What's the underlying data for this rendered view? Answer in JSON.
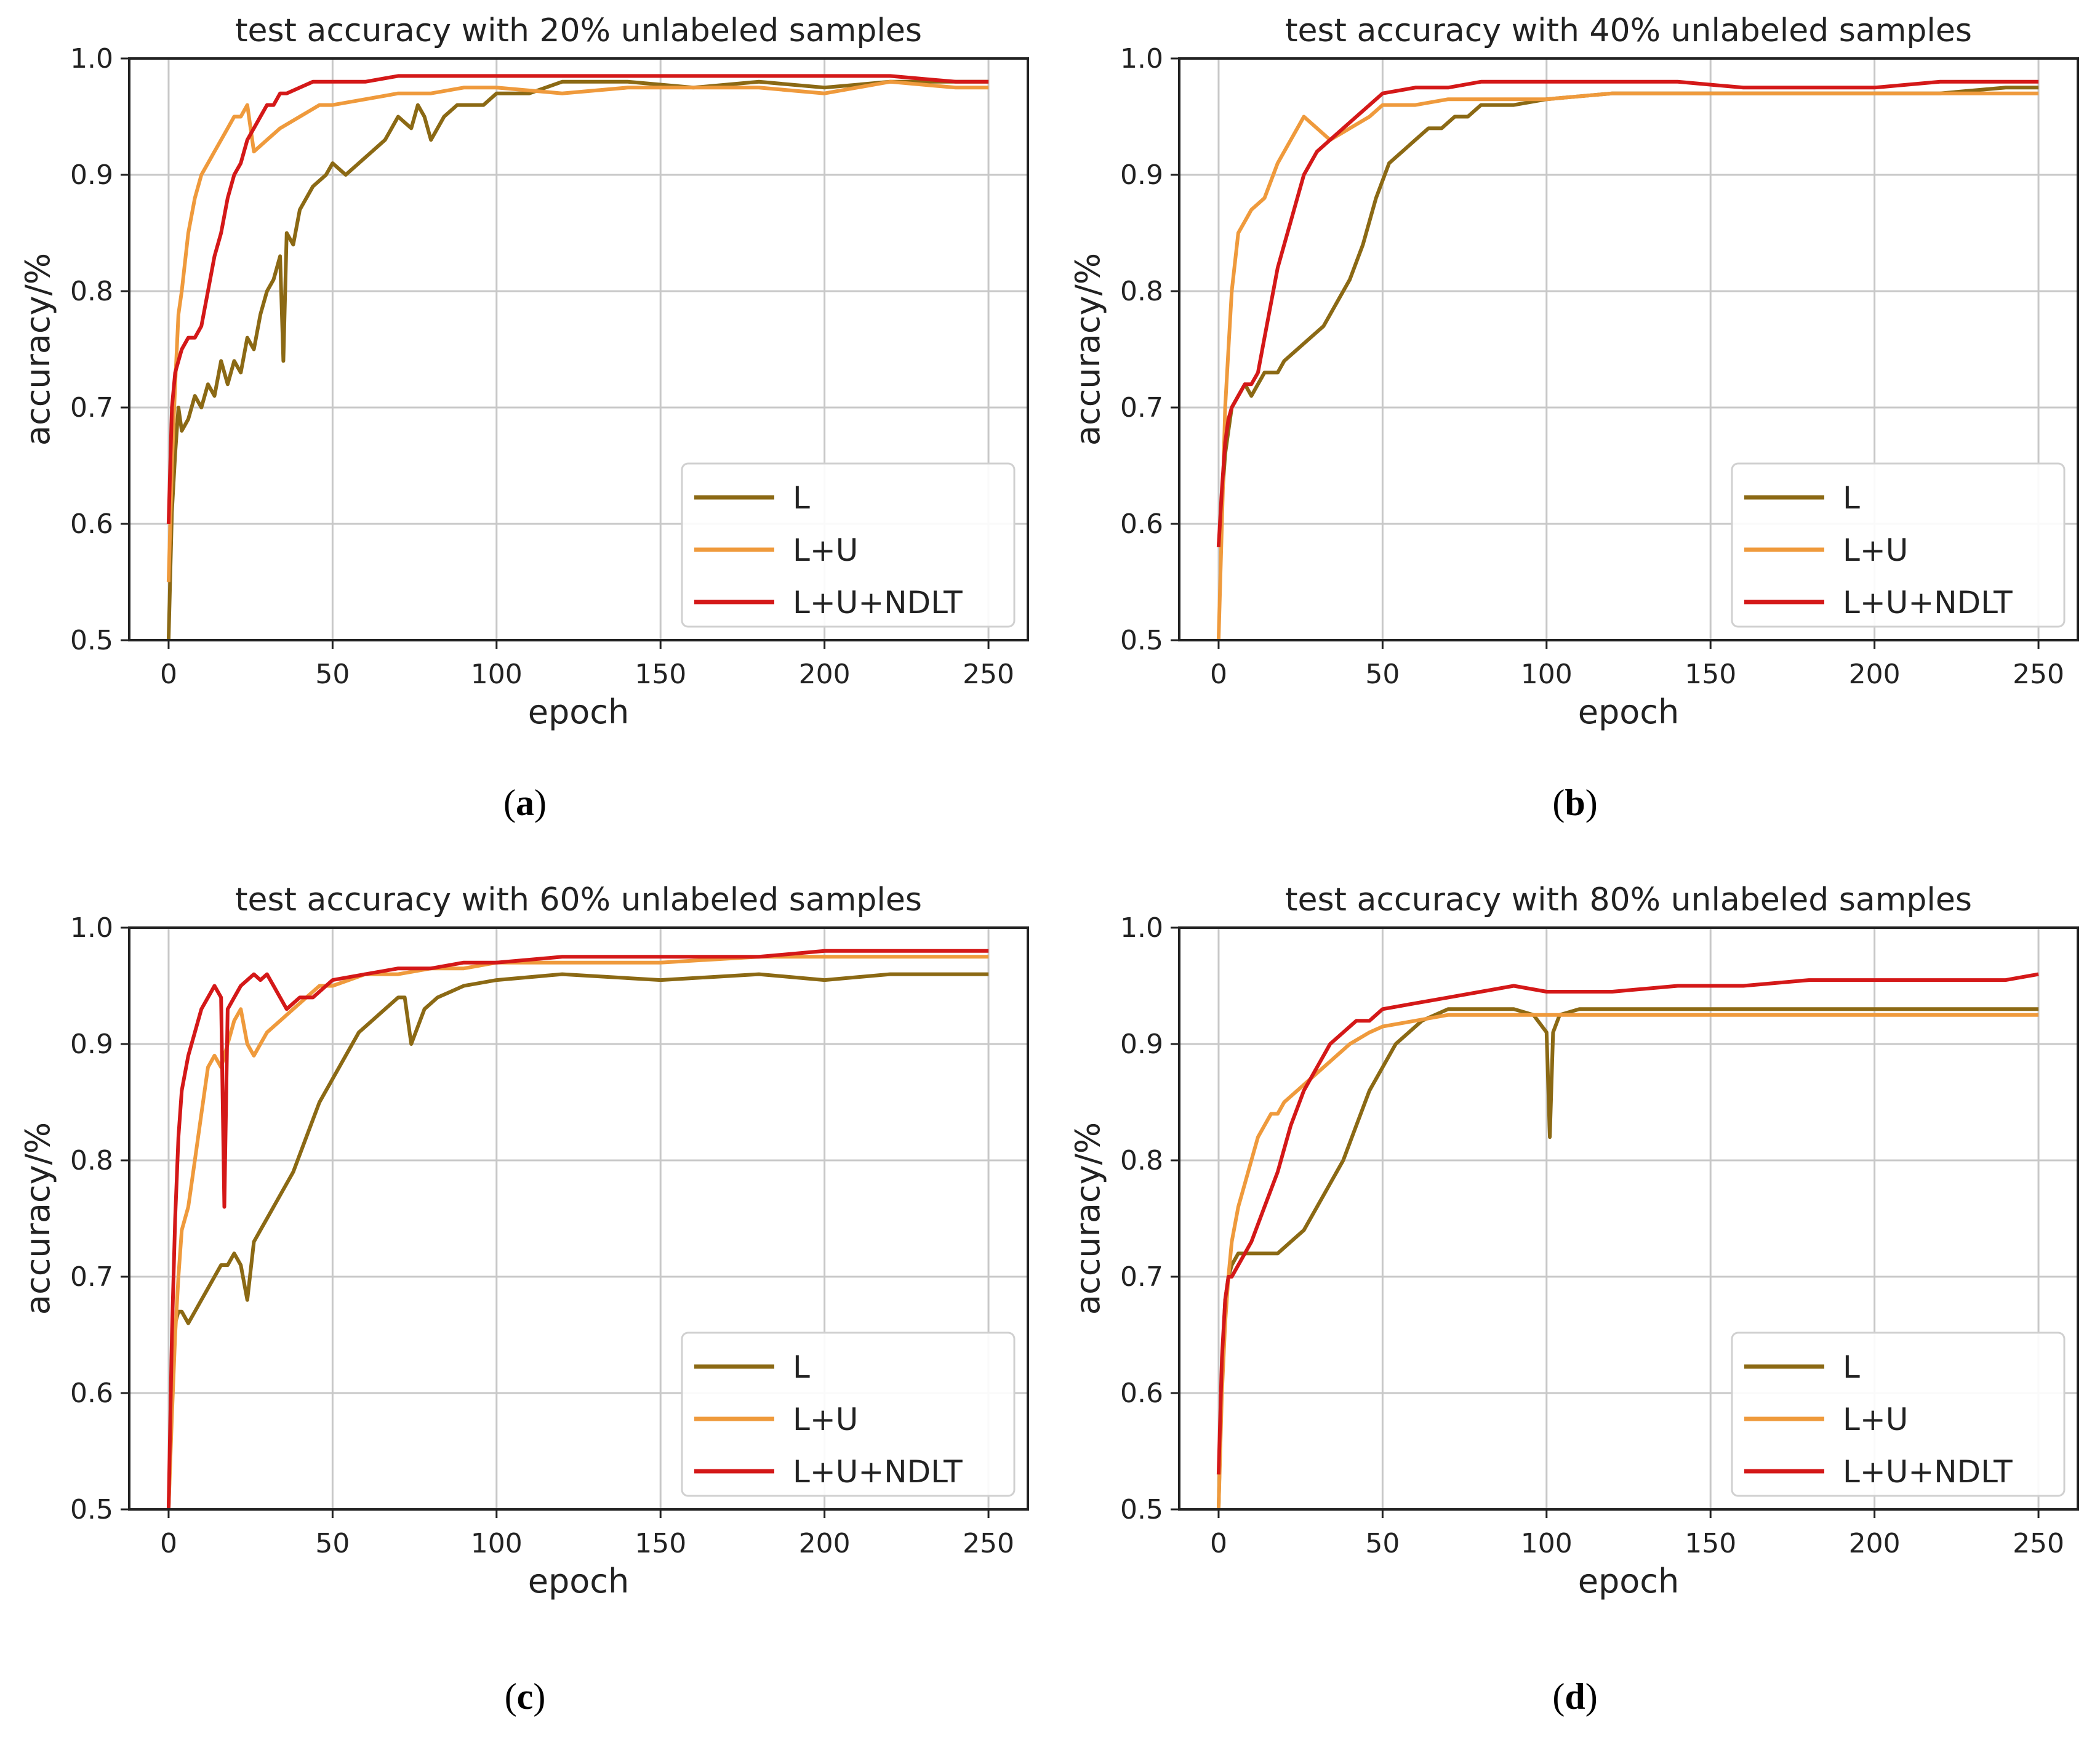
{
  "chart_data": [
    {
      "panel": "a",
      "type": "line",
      "title": "test accuracy with 20% unlabeled samples",
      "xlabel": "epoch",
      "ylabel": "accuracy/%",
      "xlim": [
        0,
        250
      ],
      "ylim": [
        0.5,
        1.0
      ],
      "xticks": [
        0,
        50,
        100,
        150,
        200,
        250
      ],
      "yticks": [
        0.5,
        0.6,
        0.7,
        0.8,
        0.9,
        1.0
      ],
      "grid": true,
      "legend_position": "lower-right",
      "series": [
        {
          "name": "L",
          "color": "#8b6914",
          "x": [
            0,
            1,
            2,
            3,
            4,
            6,
            8,
            10,
            12,
            14,
            16,
            18,
            20,
            22,
            24,
            26,
            28,
            30,
            32,
            34,
            35,
            36,
            38,
            40,
            44,
            48,
            50,
            54,
            58,
            62,
            66,
            70,
            74,
            76,
            78,
            80,
            84,
            88,
            92,
            96,
            100,
            110,
            120,
            140,
            160,
            180,
            200,
            220,
            240,
            250
          ],
          "y": [
            0.5,
            0.61,
            0.66,
            0.7,
            0.68,
            0.69,
            0.71,
            0.7,
            0.72,
            0.71,
            0.74,
            0.72,
            0.74,
            0.73,
            0.76,
            0.75,
            0.78,
            0.8,
            0.81,
            0.83,
            0.74,
            0.85,
            0.84,
            0.87,
            0.89,
            0.9,
            0.91,
            0.9,
            0.91,
            0.92,
            0.93,
            0.95,
            0.94,
            0.96,
            0.95,
            0.93,
            0.95,
            0.96,
            0.96,
            0.96,
            0.97,
            0.97,
            0.98,
            0.98,
            0.975,
            0.98,
            0.975,
            0.98,
            0.98,
            0.98
          ]
        },
        {
          "name": "L+U",
          "color": "#ef9a3c",
          "x": [
            0,
            1,
            2,
            3,
            4,
            6,
            8,
            10,
            12,
            14,
            16,
            18,
            20,
            22,
            24,
            26,
            30,
            34,
            40,
            46,
            50,
            60,
            70,
            80,
            90,
            100,
            120,
            140,
            160,
            180,
            200,
            220,
            240,
            250
          ],
          "y": [
            0.55,
            0.65,
            0.72,
            0.78,
            0.8,
            0.85,
            0.88,
            0.9,
            0.91,
            0.92,
            0.93,
            0.94,
            0.95,
            0.95,
            0.96,
            0.92,
            0.93,
            0.94,
            0.95,
            0.96,
            0.96,
            0.965,
            0.97,
            0.97,
            0.975,
            0.975,
            0.97,
            0.975,
            0.975,
            0.975,
            0.97,
            0.98,
            0.975,
            0.975
          ]
        },
        {
          "name": "L+U+NDLT",
          "color": "#d41818",
          "x": [
            0,
            1,
            2,
            3,
            4,
            6,
            8,
            10,
            12,
            14,
            16,
            18,
            20,
            22,
            24,
            26,
            28,
            30,
            32,
            34,
            36,
            40,
            44,
            48,
            50,
            60,
            70,
            80,
            90,
            100,
            110,
            120,
            140,
            160,
            180,
            200,
            220,
            240,
            250
          ],
          "y": [
            0.6,
            0.7,
            0.73,
            0.74,
            0.75,
            0.76,
            0.76,
            0.77,
            0.8,
            0.83,
            0.85,
            0.88,
            0.9,
            0.91,
            0.93,
            0.94,
            0.95,
            0.96,
            0.96,
            0.97,
            0.97,
            0.975,
            0.98,
            0.98,
            0.98,
            0.98,
            0.985,
            0.985,
            0.985,
            0.985,
            0.985,
            0.985,
            0.985,
            0.985,
            0.985,
            0.985,
            0.985,
            0.98,
            0.98
          ]
        }
      ]
    },
    {
      "panel": "b",
      "type": "line",
      "title": "test accuracy with 40% unlabeled samples",
      "xlabel": "epoch",
      "ylabel": "accuracy/%",
      "xlim": [
        0,
        250
      ],
      "ylim": [
        0.5,
        1.0
      ],
      "xticks": [
        0,
        50,
        100,
        150,
        200,
        250
      ],
      "yticks": [
        0.5,
        0.6,
        0.7,
        0.8,
        0.9,
        1.0
      ],
      "grid": true,
      "legend_position": "lower-right",
      "series": [
        {
          "name": "L",
          "color": "#8b6914",
          "x": [
            0,
            1,
            2,
            3,
            4,
            6,
            8,
            10,
            14,
            18,
            20,
            24,
            28,
            32,
            36,
            40,
            44,
            48,
            52,
            56,
            60,
            64,
            68,
            72,
            76,
            80,
            90,
            100,
            120,
            150,
            180,
            200,
            220,
            240,
            250
          ],
          "y": [
            0.58,
            0.62,
            0.66,
            0.68,
            0.7,
            0.71,
            0.72,
            0.71,
            0.73,
            0.73,
            0.74,
            0.75,
            0.76,
            0.77,
            0.79,
            0.81,
            0.84,
            0.88,
            0.91,
            0.92,
            0.93,
            0.94,
            0.94,
            0.95,
            0.95,
            0.96,
            0.96,
            0.965,
            0.97,
            0.97,
            0.97,
            0.97,
            0.97,
            0.975,
            0.975
          ]
        },
        {
          "name": "L+U",
          "color": "#ef9a3c",
          "x": [
            0,
            1,
            2,
            3,
            4,
            6,
            8,
            10,
            14,
            18,
            22,
            26,
            30,
            34,
            40,
            46,
            50,
            60,
            70,
            80,
            90,
            100,
            120,
            140,
            160,
            180,
            200,
            220,
            240,
            250
          ],
          "y": [
            0.5,
            0.6,
            0.7,
            0.75,
            0.8,
            0.85,
            0.86,
            0.87,
            0.88,
            0.91,
            0.93,
            0.95,
            0.94,
            0.93,
            0.94,
            0.95,
            0.96,
            0.96,
            0.965,
            0.965,
            0.965,
            0.965,
            0.97,
            0.97,
            0.97,
            0.97,
            0.97,
            0.97,
            0.97,
            0.97
          ]
        },
        {
          "name": "L+U+NDLT",
          "color": "#d41818",
          "x": [
            0,
            1,
            2,
            3,
            4,
            6,
            8,
            10,
            12,
            14,
            16,
            18,
            20,
            22,
            24,
            26,
            30,
            34,
            38,
            42,
            46,
            50,
            60,
            70,
            80,
            90,
            100,
            120,
            140,
            160,
            180,
            200,
            220,
            240,
            250
          ],
          "y": [
            0.58,
            0.63,
            0.67,
            0.69,
            0.7,
            0.71,
            0.72,
            0.72,
            0.73,
            0.76,
            0.79,
            0.82,
            0.84,
            0.86,
            0.88,
            0.9,
            0.92,
            0.93,
            0.94,
            0.95,
            0.96,
            0.97,
            0.975,
            0.975,
            0.98,
            0.98,
            0.98,
            0.98,
            0.98,
            0.975,
            0.975,
            0.975,
            0.98,
            0.98,
            0.98
          ]
        }
      ]
    },
    {
      "panel": "c",
      "type": "line",
      "title": "test accuracy with 60% unlabeled samples",
      "xlabel": "epoch",
      "ylabel": "accuracy/%",
      "xlim": [
        0,
        250
      ],
      "ylim": [
        0.5,
        1.0
      ],
      "xticks": [
        0,
        50,
        100,
        150,
        200,
        250
      ],
      "yticks": [
        0.5,
        0.6,
        0.7,
        0.8,
        0.9,
        1.0
      ],
      "grid": true,
      "legend_position": "lower-right",
      "series": [
        {
          "name": "L",
          "color": "#8b6914",
          "x": [
            0,
            1,
            2,
            3,
            4,
            6,
            8,
            10,
            12,
            14,
            16,
            18,
            20,
            22,
            24,
            26,
            28,
            30,
            34,
            38,
            42,
            46,
            50,
            54,
            58,
            62,
            66,
            70,
            72,
            74,
            78,
            82,
            86,
            90,
            100,
            120,
            150,
            180,
            200,
            220,
            240,
            250
          ],
          "y": [
            0.5,
            0.6,
            0.66,
            0.67,
            0.67,
            0.66,
            0.67,
            0.68,
            0.69,
            0.7,
            0.71,
            0.71,
            0.72,
            0.71,
            0.68,
            0.73,
            0.74,
            0.75,
            0.77,
            0.79,
            0.82,
            0.85,
            0.87,
            0.89,
            0.91,
            0.92,
            0.93,
            0.94,
            0.94,
            0.9,
            0.93,
            0.94,
            0.945,
            0.95,
            0.955,
            0.96,
            0.955,
            0.96,
            0.955,
            0.96,
            0.96,
            0.96
          ]
        },
        {
          "name": "L+U",
          "color": "#ef9a3c",
          "x": [
            0,
            1,
            2,
            3,
            4,
            6,
            8,
            10,
            12,
            14,
            16,
            18,
            20,
            22,
            24,
            26,
            28,
            30,
            34,
            38,
            42,
            46,
            50,
            60,
            70,
            80,
            90,
            100,
            120,
            150,
            180,
            200,
            220,
            240,
            250
          ],
          "y": [
            0.5,
            0.58,
            0.65,
            0.7,
            0.74,
            0.76,
            0.8,
            0.84,
            0.88,
            0.89,
            0.88,
            0.9,
            0.92,
            0.93,
            0.9,
            0.89,
            0.9,
            0.91,
            0.92,
            0.93,
            0.94,
            0.95,
            0.95,
            0.96,
            0.96,
            0.965,
            0.965,
            0.97,
            0.97,
            0.97,
            0.975,
            0.975,
            0.975,
            0.975,
            0.975
          ]
        },
        {
          "name": "L+U+NDLT",
          "color": "#d41818",
          "x": [
            0,
            1,
            2,
            3,
            4,
            6,
            8,
            10,
            12,
            14,
            16,
            17,
            18,
            20,
            22,
            24,
            26,
            28,
            30,
            32,
            36,
            40,
            44,
            48,
            50,
            60,
            70,
            80,
            90,
            100,
            120,
            150,
            180,
            200,
            220,
            240,
            250
          ],
          "y": [
            0.5,
            0.65,
            0.75,
            0.82,
            0.86,
            0.89,
            0.91,
            0.93,
            0.94,
            0.95,
            0.94,
            0.76,
            0.93,
            0.94,
            0.95,
            0.955,
            0.96,
            0.955,
            0.96,
            0.95,
            0.93,
            0.94,
            0.94,
            0.95,
            0.955,
            0.96,
            0.965,
            0.965,
            0.97,
            0.97,
            0.975,
            0.975,
            0.975,
            0.98,
            0.98,
            0.98,
            0.98
          ]
        }
      ]
    },
    {
      "panel": "d",
      "type": "line",
      "title": "test accuracy with 80% unlabeled samples",
      "xlabel": "epoch",
      "ylabel": "accuracy/%",
      "xlim": [
        0,
        250
      ],
      "ylim": [
        0.5,
        1.0
      ],
      "xticks": [
        0,
        50,
        100,
        150,
        200,
        250
      ],
      "yticks": [
        0.5,
        0.6,
        0.7,
        0.8,
        0.9,
        1.0
      ],
      "grid": true,
      "legend_position": "lower-right",
      "series": [
        {
          "name": "L",
          "color": "#8b6914",
          "x": [
            0,
            1,
            2,
            3,
            4,
            6,
            8,
            10,
            14,
            18,
            22,
            26,
            30,
            34,
            38,
            42,
            46,
            50,
            54,
            58,
            62,
            66,
            70,
            80,
            90,
            96,
            100,
            101,
            102,
            104,
            110,
            120,
            140,
            160,
            180,
            200,
            220,
            240,
            250
          ],
          "y": [
            0.5,
            0.62,
            0.68,
            0.7,
            0.71,
            0.72,
            0.72,
            0.72,
            0.72,
            0.72,
            0.73,
            0.74,
            0.76,
            0.78,
            0.8,
            0.83,
            0.86,
            0.88,
            0.9,
            0.91,
            0.92,
            0.925,
            0.93,
            0.93,
            0.93,
            0.925,
            0.91,
            0.82,
            0.91,
            0.925,
            0.93,
            0.93,
            0.93,
            0.93,
            0.93,
            0.93,
            0.93,
            0.93,
            0.93
          ]
        },
        {
          "name": "L+U",
          "color": "#ef9a3c",
          "x": [
            0,
            1,
            2,
            3,
            4,
            6,
            8,
            10,
            12,
            14,
            16,
            18,
            20,
            24,
            28,
            32,
            36,
            40,
            46,
            50,
            60,
            70,
            80,
            90,
            100,
            120,
            140,
            160,
            180,
            200,
            220,
            240,
            250
          ],
          "y": [
            0.5,
            0.6,
            0.66,
            0.7,
            0.73,
            0.76,
            0.78,
            0.8,
            0.82,
            0.83,
            0.84,
            0.84,
            0.85,
            0.86,
            0.87,
            0.88,
            0.89,
            0.9,
            0.91,
            0.915,
            0.92,
            0.925,
            0.925,
            0.925,
            0.925,
            0.925,
            0.925,
            0.925,
            0.925,
            0.925,
            0.925,
            0.925,
            0.925
          ]
        },
        {
          "name": "L+U+NDLT",
          "color": "#d41818",
          "x": [
            0,
            1,
            2,
            3,
            4,
            6,
            8,
            10,
            14,
            18,
            22,
            26,
            30,
            34,
            38,
            42,
            46,
            50,
            60,
            70,
            80,
            90,
            100,
            120,
            140,
            150,
            160,
            180,
            200,
            220,
            240,
            250
          ],
          "y": [
            0.53,
            0.63,
            0.68,
            0.7,
            0.7,
            0.71,
            0.72,
            0.73,
            0.76,
            0.79,
            0.83,
            0.86,
            0.88,
            0.9,
            0.91,
            0.92,
            0.92,
            0.93,
            0.935,
            0.94,
            0.945,
            0.95,
            0.945,
            0.945,
            0.95,
            0.95,
            0.95,
            0.955,
            0.955,
            0.955,
            0.955,
            0.96
          ]
        }
      ]
    }
  ],
  "captions": [
    "a",
    "b",
    "c",
    "d"
  ]
}
